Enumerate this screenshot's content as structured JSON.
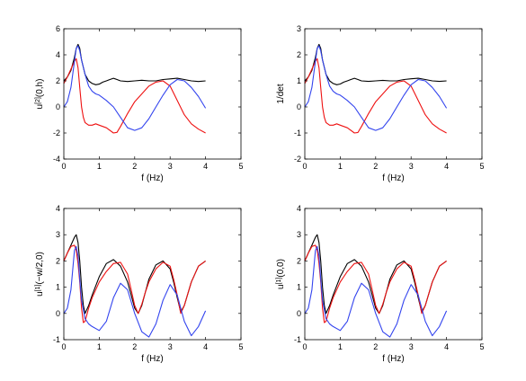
{
  "colors": {
    "black": "#000000",
    "red": "#ee1111",
    "blue": "#3344ee"
  },
  "chart_data": [
    {
      "type": "line",
      "title": "",
      "xlabel": "f (Hz)",
      "ylabel": "u^{[2]}(0,h)",
      "xlim": [
        0,
        5
      ],
      "ylim": [
        -4,
        6
      ],
      "xticks": [
        "0",
        "1",
        "2",
        "3",
        "4",
        "5"
      ],
      "yticks": [
        "-4",
        "-2",
        "0",
        "2",
        "4",
        "6"
      ],
      "xtick_values": [
        0,
        1,
        2,
        3,
        4,
        5
      ],
      "ytick_values": [
        -4,
        -2,
        0,
        2,
        4,
        6
      ],
      "grid": false,
      "series": [
        {
          "color": "#000000",
          "x": [
            0,
            0.1,
            0.2,
            0.3,
            0.35,
            0.4,
            0.45,
            0.5,
            0.6,
            0.7,
            0.8,
            0.9,
            1.0,
            1.1,
            1.2,
            1.3,
            1.4,
            1.5,
            1.6,
            1.8,
            2.0,
            2.2,
            2.4,
            2.6,
            2.8,
            3.0,
            3.2,
            3.4,
            3.6,
            3.8,
            4.0
          ],
          "y": [
            2.0,
            2.3,
            2.8,
            3.8,
            4.5,
            4.8,
            4.5,
            3.6,
            2.5,
            2.0,
            1.8,
            1.7,
            1.75,
            1.9,
            2.0,
            2.1,
            2.2,
            2.1,
            2.0,
            1.95,
            2.0,
            2.05,
            2.0,
            2.0,
            2.1,
            2.15,
            2.2,
            2.1,
            2.0,
            1.95,
            2.0
          ]
        },
        {
          "color": "#ee1111",
          "x": [
            0,
            0.1,
            0.2,
            0.3,
            0.35,
            0.4,
            0.45,
            0.5,
            0.55,
            0.6,
            0.7,
            0.8,
            0.9,
            1.0,
            1.2,
            1.4,
            1.5,
            1.6,
            1.8,
            2.0,
            2.2,
            2.4,
            2.6,
            2.8,
            3.0,
            3.2,
            3.4,
            3.6,
            3.8,
            4.0
          ],
          "y": [
            1.8,
            2.3,
            2.9,
            3.5,
            3.7,
            3.0,
            1.5,
            0.0,
            -0.8,
            -1.2,
            -1.4,
            -1.4,
            -1.3,
            -1.4,
            -1.6,
            -2.0,
            -1.95,
            -1.5,
            -0.5,
            0.4,
            1.0,
            1.6,
            1.9,
            2.0,
            1.6,
            0.5,
            -0.6,
            -1.3,
            -1.7,
            -2.0
          ]
        },
        {
          "color": "#3344ee",
          "x": [
            0,
            0.1,
            0.2,
            0.3,
            0.35,
            0.4,
            0.45,
            0.5,
            0.6,
            0.7,
            0.8,
            0.9,
            1.0,
            1.2,
            1.4,
            1.6,
            1.8,
            2.0,
            2.2,
            2.4,
            2.6,
            2.8,
            3.0,
            3.2,
            3.4,
            3.6,
            3.8,
            4.0
          ],
          "y": [
            0.0,
            0.4,
            1.5,
            3.5,
            4.5,
            4.7,
            4.3,
            3.6,
            2.5,
            1.6,
            1.2,
            1.0,
            0.9,
            0.5,
            0.0,
            -0.8,
            -1.6,
            -1.8,
            -1.6,
            -0.9,
            0.0,
            0.9,
            1.7,
            2.1,
            2.0,
            1.5,
            0.8,
            -0.1
          ]
        }
      ]
    },
    {
      "type": "line",
      "title": "",
      "xlabel": "f (Hz)",
      "ylabel": "1/det",
      "xlim": [
        0,
        5
      ],
      "ylim": [
        -2,
        3
      ],
      "xticks": [
        "0",
        "1",
        "2",
        "3",
        "4",
        "5"
      ],
      "yticks": [
        "-2",
        "-1",
        "0",
        "1",
        "2",
        "3"
      ],
      "xtick_values": [
        0,
        1,
        2,
        3,
        4,
        5
      ],
      "ytick_values": [
        -2,
        -1,
        0,
        1,
        2,
        3
      ],
      "grid": false,
      "series": [
        {
          "color": "#000000",
          "x": [
            0,
            0.1,
            0.2,
            0.3,
            0.35,
            0.4,
            0.45,
            0.5,
            0.6,
            0.7,
            0.8,
            0.9,
            1.0,
            1.1,
            1.2,
            1.3,
            1.4,
            1.5,
            1.6,
            1.8,
            2.0,
            2.2,
            2.4,
            2.6,
            2.8,
            3.0,
            3.2,
            3.4,
            3.6,
            3.8,
            4.0
          ],
          "y": [
            1.0,
            1.15,
            1.4,
            1.9,
            2.25,
            2.4,
            2.25,
            1.8,
            1.25,
            1.0,
            0.9,
            0.85,
            0.88,
            0.95,
            1.0,
            1.05,
            1.1,
            1.05,
            1.0,
            0.98,
            1.0,
            1.02,
            1.0,
            1.0,
            1.05,
            1.08,
            1.1,
            1.05,
            1.0,
            0.98,
            1.0
          ]
        },
        {
          "color": "#ee1111",
          "x": [
            0,
            0.1,
            0.2,
            0.3,
            0.35,
            0.4,
            0.45,
            0.5,
            0.55,
            0.6,
            0.7,
            0.8,
            0.9,
            1.0,
            1.2,
            1.4,
            1.5,
            1.6,
            1.8,
            2.0,
            2.2,
            2.4,
            2.6,
            2.8,
            3.0,
            3.2,
            3.4,
            3.6,
            3.8,
            4.0
          ],
          "y": [
            0.9,
            1.15,
            1.45,
            1.75,
            1.85,
            1.5,
            0.75,
            0.0,
            -0.4,
            -0.6,
            -0.7,
            -0.7,
            -0.65,
            -0.7,
            -0.8,
            -1.0,
            -0.98,
            -0.75,
            -0.25,
            0.2,
            0.5,
            0.8,
            0.95,
            1.0,
            0.8,
            0.25,
            -0.3,
            -0.65,
            -0.85,
            -1.0
          ]
        },
        {
          "color": "#3344ee",
          "x": [
            0,
            0.1,
            0.2,
            0.3,
            0.35,
            0.4,
            0.45,
            0.5,
            0.6,
            0.7,
            0.8,
            0.9,
            1.0,
            1.2,
            1.4,
            1.6,
            1.8,
            2.0,
            2.2,
            2.4,
            2.6,
            2.8,
            3.0,
            3.2,
            3.4,
            3.6,
            3.8,
            4.0
          ],
          "y": [
            0.0,
            0.2,
            0.75,
            1.75,
            2.25,
            2.35,
            2.15,
            1.8,
            1.25,
            0.8,
            0.6,
            0.5,
            0.45,
            0.25,
            0.0,
            -0.4,
            -0.8,
            -0.9,
            -0.8,
            -0.45,
            0.0,
            0.45,
            0.85,
            1.05,
            1.0,
            0.75,
            0.4,
            -0.05
          ]
        }
      ]
    },
    {
      "type": "line",
      "title": "",
      "xlabel": "f (Hz)",
      "ylabel": "u^{[1]}(−w/2,0)",
      "xlim": [
        0,
        5
      ],
      "ylim": [
        -1,
        4
      ],
      "xticks": [
        "0",
        "1",
        "2",
        "3",
        "4",
        "5"
      ],
      "yticks": [
        "-1",
        "0",
        "1",
        "2",
        "3",
        "4"
      ],
      "xtick_values": [
        0,
        1,
        2,
        3,
        4,
        5
      ],
      "ytick_values": [
        -1,
        0,
        1,
        2,
        3,
        4
      ],
      "grid": false,
      "series": [
        {
          "color": "#000000",
          "x": [
            0,
            0.1,
            0.2,
            0.3,
            0.35,
            0.4,
            0.45,
            0.5,
            0.55,
            0.6,
            0.7,
            0.8,
            1.0,
            1.2,
            1.4,
            1.6,
            1.8,
            1.9,
            2.0,
            2.1,
            2.2,
            2.3,
            2.4,
            2.6,
            2.8,
            3.0,
            3.1,
            3.2,
            3.3,
            3.4,
            3.6,
            3.8,
            4.0
          ],
          "y": [
            2.0,
            2.3,
            2.6,
            2.9,
            3.0,
            2.7,
            2.0,
            1.0,
            0.3,
            0.0,
            0.3,
            0.7,
            1.4,
            1.9,
            2.05,
            1.8,
            1.2,
            0.7,
            0.2,
            0.0,
            0.3,
            0.8,
            1.3,
            1.85,
            2.0,
            1.7,
            1.2,
            0.6,
            0.05,
            0.3,
            1.2,
            1.8,
            2.0
          ]
        },
        {
          "color": "#ee1111",
          "x": [
            0,
            0.1,
            0.2,
            0.3,
            0.35,
            0.4,
            0.45,
            0.5,
            0.55,
            0.6,
            0.7,
            0.8,
            1.0,
            1.2,
            1.4,
            1.6,
            1.8,
            1.9,
            2.0,
            2.1,
            2.2,
            2.3,
            2.4,
            2.6,
            2.8,
            3.0,
            3.1,
            3.2,
            3.3,
            3.4,
            3.6,
            3.8,
            4.0
          ],
          "y": [
            2.0,
            2.3,
            2.55,
            2.6,
            2.4,
            1.9,
            1.2,
            0.2,
            -0.35,
            -0.3,
            0.2,
            0.6,
            1.2,
            1.6,
            1.9,
            1.95,
            1.5,
            0.9,
            0.3,
            0.0,
            0.35,
            0.8,
            1.2,
            1.7,
            1.95,
            1.8,
            1.3,
            0.7,
            0.0,
            0.3,
            1.2,
            1.8,
            2.0
          ]
        },
        {
          "color": "#3344ee",
          "x": [
            0,
            0.1,
            0.2,
            0.3,
            0.35,
            0.4,
            0.45,
            0.5,
            0.6,
            0.7,
            0.8,
            1.0,
            1.2,
            1.4,
            1.6,
            1.8,
            2.0,
            2.2,
            2.4,
            2.6,
            2.8,
            3.0,
            3.2,
            3.4,
            3.6,
            3.8,
            4.0
          ],
          "y": [
            0.0,
            0.2,
            0.9,
            2.4,
            2.55,
            2.2,
            1.3,
            0.5,
            -0.2,
            -0.4,
            -0.5,
            -0.65,
            -0.3,
            0.6,
            1.15,
            0.9,
            0.0,
            -0.7,
            -0.9,
            -0.4,
            0.5,
            1.1,
            0.7,
            -0.3,
            -0.85,
            -0.5,
            0.1
          ]
        }
      ]
    },
    {
      "type": "line",
      "title": "",
      "xlabel": "f (Hz)",
      "ylabel": "u^{[1]}(0,0)",
      "xlim": [
        0,
        5
      ],
      "ylim": [
        -1,
        4
      ],
      "xticks": [
        "0",
        "1",
        "2",
        "3",
        "4",
        "5"
      ],
      "yticks": [
        "-1",
        "0",
        "1",
        "2",
        "3",
        "4"
      ],
      "xtick_values": [
        0,
        1,
        2,
        3,
        4,
        5
      ],
      "ytick_values": [
        -1,
        0,
        1,
        2,
        3,
        4
      ],
      "grid": false,
      "series": [
        {
          "color": "#000000",
          "x": [
            0,
            0.1,
            0.2,
            0.3,
            0.35,
            0.4,
            0.45,
            0.5,
            0.55,
            0.6,
            0.7,
            0.8,
            1.0,
            1.2,
            1.4,
            1.6,
            1.8,
            1.9,
            2.0,
            2.1,
            2.2,
            2.3,
            2.4,
            2.6,
            2.8,
            3.0,
            3.1,
            3.2,
            3.3,
            3.4,
            3.6,
            3.8,
            4.0
          ],
          "y": [
            2.0,
            2.3,
            2.6,
            2.9,
            3.0,
            2.7,
            2.0,
            1.0,
            0.3,
            0.0,
            0.3,
            0.7,
            1.4,
            1.9,
            2.05,
            1.8,
            1.2,
            0.7,
            0.2,
            0.0,
            0.3,
            0.8,
            1.3,
            1.85,
            2.0,
            1.7,
            1.2,
            0.6,
            0.05,
            0.3,
            1.2,
            1.8,
            2.0
          ]
        },
        {
          "color": "#ee1111",
          "x": [
            0,
            0.1,
            0.2,
            0.3,
            0.35,
            0.4,
            0.45,
            0.5,
            0.55,
            0.6,
            0.7,
            0.8,
            1.0,
            1.2,
            1.4,
            1.6,
            1.8,
            1.9,
            2.0,
            2.1,
            2.2,
            2.3,
            2.4,
            2.6,
            2.8,
            3.0,
            3.1,
            3.2,
            3.3,
            3.4,
            3.6,
            3.8,
            4.0
          ],
          "y": [
            2.0,
            2.3,
            2.55,
            2.6,
            2.4,
            1.9,
            1.2,
            0.2,
            -0.35,
            -0.3,
            0.2,
            0.6,
            1.2,
            1.6,
            1.9,
            1.95,
            1.5,
            0.9,
            0.3,
            0.0,
            0.35,
            0.8,
            1.2,
            1.7,
            1.95,
            1.8,
            1.3,
            0.7,
            0.0,
            0.3,
            1.2,
            1.8,
            2.0
          ]
        },
        {
          "color": "#3344ee",
          "x": [
            0,
            0.1,
            0.2,
            0.3,
            0.35,
            0.4,
            0.45,
            0.5,
            0.6,
            0.7,
            0.8,
            1.0,
            1.2,
            1.4,
            1.6,
            1.8,
            2.0,
            2.2,
            2.4,
            2.6,
            2.8,
            3.0,
            3.2,
            3.4,
            3.6,
            3.8,
            4.0
          ],
          "y": [
            0.0,
            0.2,
            0.9,
            2.4,
            2.55,
            2.2,
            1.3,
            0.5,
            -0.2,
            -0.4,
            -0.5,
            -0.65,
            -0.3,
            0.6,
            1.15,
            0.9,
            0.0,
            -0.7,
            -0.9,
            -0.4,
            0.5,
            1.1,
            0.7,
            -0.3,
            -0.85,
            -0.5,
            0.1
          ]
        }
      ]
    }
  ]
}
